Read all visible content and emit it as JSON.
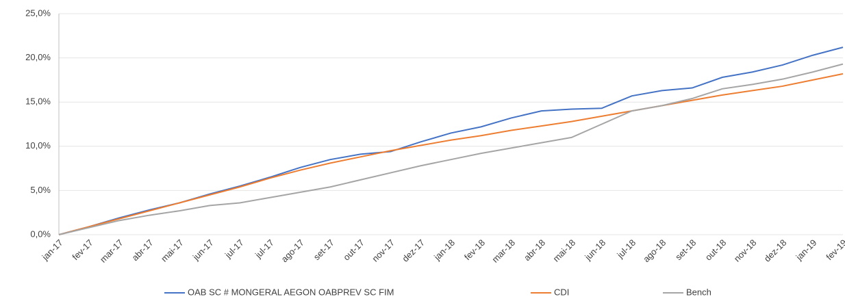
{
  "chart_data": {
    "type": "line",
    "categories": [
      "jan-17",
      "fev-17",
      "mar-17",
      "abr-17",
      "mai-17",
      "jun-17",
      "jul-17",
      "jul-17",
      "ago-17",
      "set-17",
      "out-17",
      "nov-17",
      "dez-17",
      "jan-18",
      "fev-18",
      "mar-18",
      "abr-18",
      "mai-18",
      "jun-18",
      "jul-18",
      "ago-18",
      "set-18",
      "out-18",
      "nov-18",
      "dez-18",
      "jan-19",
      "fev-19"
    ],
    "series": [
      {
        "name": "OAB SC # MONGERAL AEGON OABPREV SC FIM",
        "color": "#4472c4",
        "values": [
          0,
          0.9,
          1.9,
          2.8,
          3.6,
          4.6,
          5.5,
          6.5,
          7.6,
          8.5,
          9.1,
          9.4,
          10.5,
          11.5,
          12.2,
          13.2,
          14.0,
          14.2,
          14.3,
          15.7,
          16.3,
          16.6,
          17.8,
          18.4,
          19.2,
          20.3,
          21.2
        ]
      },
      {
        "name": "CDI",
        "color": "#ed7d31",
        "values": [
          0,
          0.9,
          1.8,
          2.7,
          3.6,
          4.5,
          5.4,
          6.4,
          7.3,
          8.1,
          8.8,
          9.5,
          10.1,
          10.7,
          11.2,
          11.8,
          12.3,
          12.8,
          13.4,
          14.0,
          14.6,
          15.2,
          15.8,
          16.3,
          16.8,
          17.5,
          18.2
        ]
      },
      {
        "name": "Bench",
        "color": "#a5a5a5",
        "values": [
          0,
          0.8,
          1.6,
          2.2,
          2.7,
          3.3,
          3.6,
          4.2,
          4.8,
          5.4,
          6.2,
          7.0,
          7.8,
          8.5,
          9.2,
          9.8,
          10.4,
          11.0,
          12.5,
          14.0,
          14.6,
          15.4,
          16.5,
          17.0,
          17.6,
          18.4,
          19.3
        ]
      }
    ],
    "ylim": [
      0,
      25
    ],
    "yticks": [
      {
        "value": 0,
        "label": "0,0%"
      },
      {
        "value": 5,
        "label": "5,0%"
      },
      {
        "value": 10,
        "label": "10,0%"
      },
      {
        "value": 15,
        "label": "15,0%"
      },
      {
        "value": 20,
        "label": "20,0%"
      },
      {
        "value": 25,
        "label": "25,0%"
      }
    ],
    "grid": true,
    "legend": "bottom"
  }
}
